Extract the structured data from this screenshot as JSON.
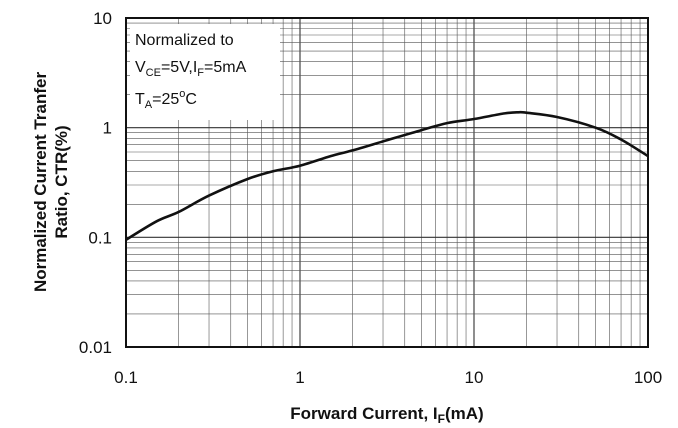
{
  "chart_data": {
    "type": "line",
    "x_scale": "log",
    "y_scale": "log",
    "xlim": [
      0.1,
      100
    ],
    "ylim": [
      0.01,
      10
    ],
    "x_ticks": [
      "0.1",
      "1",
      "10",
      "100"
    ],
    "y_ticks": [
      "10",
      "1",
      "0.1",
      "0.01"
    ],
    "xlabel": {
      "main": "Forward Current, I",
      "sub": "F",
      "tail": "(mA)"
    },
    "ylabel": {
      "line1": "Normalized Current Tranfer",
      "line2": "Ratio, CTR(%)"
    },
    "grid": true,
    "annotation": {
      "line1": "Normalized to",
      "line2": {
        "a": "V",
        "a_sub": "CE",
        "b": "=5V,I",
        "b_sub": "F",
        "c": "=5mA"
      },
      "line3": {
        "a": "T",
        "a_sub": "A",
        "b": "=25",
        "sup": "o",
        "c": "C"
      }
    },
    "series": [
      {
        "x": [
          0.1,
          0.15,
          0.2,
          0.3,
          0.5,
          0.7,
          1,
          1.5,
          2,
          3,
          5,
          7,
          10,
          15,
          18,
          20,
          30,
          50,
          70,
          100
        ],
        "y": [
          0.095,
          0.14,
          0.17,
          0.24,
          0.34,
          0.4,
          0.45,
          0.55,
          0.62,
          0.75,
          0.95,
          1.1,
          1.2,
          1.35,
          1.38,
          1.37,
          1.25,
          1.0,
          0.78,
          0.55
        ]
      }
    ]
  }
}
